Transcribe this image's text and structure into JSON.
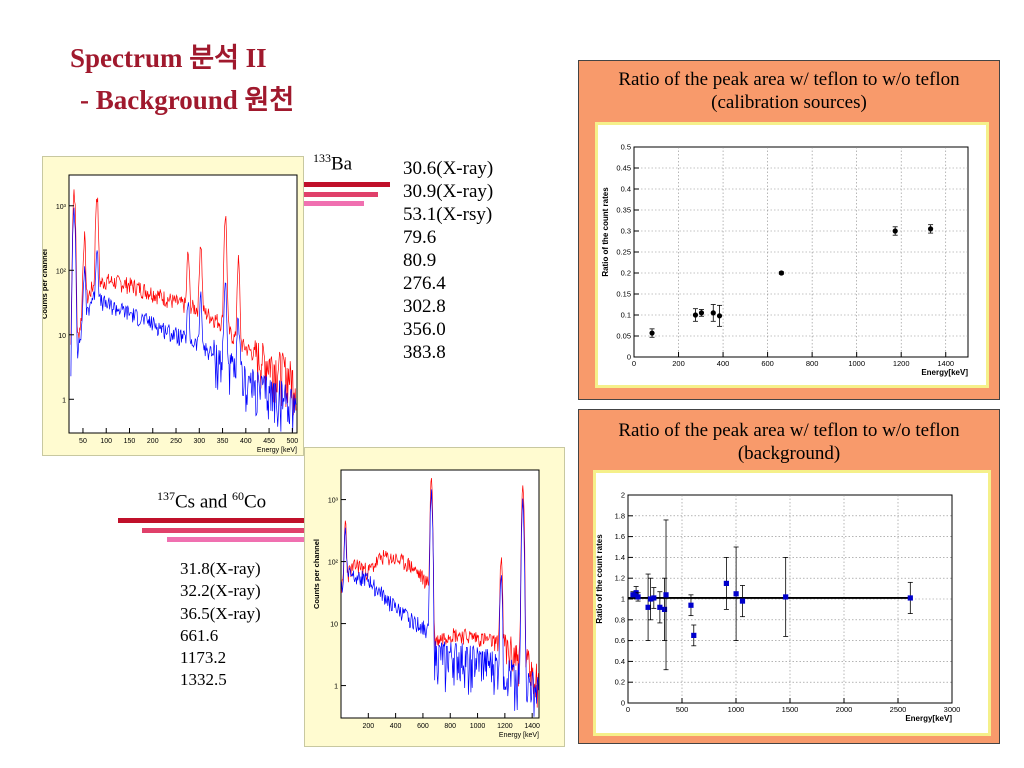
{
  "title": {
    "line1": "Spectrum 분석 II",
    "line2": "- Background 원천"
  },
  "source_labels": {
    "ba133": {
      "mass": "133",
      "element": "Ba"
    },
    "cs137_co60": {
      "mass1": "137",
      "el1": "Cs and ",
      "mass2": "60",
      "el2": "Co"
    }
  },
  "peaks_ba133": [
    "30.6(X-ray)",
    "30.9(X-ray)",
    "53.1(X-rsy)",
    "79.6",
    "80.9",
    "276.4",
    "302.8",
    "356.0",
    "383.8"
  ],
  "peaks_cs_co": [
    "31.8(X-ray)",
    "32.2(X-ray)",
    "36.5(X-ray)",
    "661.6",
    "1173.2",
    "1332.5"
  ],
  "colors": {
    "title": "#a0192d",
    "bar_dark": "#c0102a",
    "bar_mid": "#e0406a",
    "bar_light": "#f070b0",
    "panel": "#f89a6b",
    "spectrum_red": "#ff0000",
    "spectrum_blue": "#0000ff",
    "marker_black": "#000000",
    "marker_blue": "#0000cc"
  },
  "chart_data": [
    {
      "type": "line",
      "name": "ba133-spectrum",
      "xlabel": "Energy [keV]",
      "ylabel": "Counts per channel",
      "x_ticks": [
        "50",
        "100",
        "150",
        "200",
        "250",
        "300",
        "350",
        "400",
        "450",
        "500"
      ],
      "y_ticks": [
        "1",
        "10",
        "10²",
        "10³"
      ],
      "xlim": [
        20,
        510
      ],
      "ylog": true,
      "ylim": [
        0.3,
        3000
      ],
      "series": [
        {
          "color": "red",
          "base": [
            [
              25,
              4
            ],
            [
              35,
              6
            ],
            [
              50,
              25
            ],
            [
              70,
              55
            ],
            [
              100,
              70
            ],
            [
              150,
              60
            ],
            [
              200,
              45
            ],
            [
              250,
              32
            ],
            [
              300,
              25
            ],
            [
              350,
              15
            ],
            [
              380,
              8
            ],
            [
              420,
              5
            ],
            [
              480,
              3
            ],
            [
              505,
              2
            ]
          ],
          "peaks": [
            [
              31,
              1800
            ],
            [
              53,
              300
            ],
            [
              80,
              1500
            ],
            [
              276,
              150
            ],
            [
              303,
              250
            ],
            [
              356,
              700
            ],
            [
              384,
              130
            ]
          ]
        },
        {
          "color": "blue",
          "base": [
            [
              25,
              3
            ],
            [
              35,
              4
            ],
            [
              50,
              15
            ],
            [
              70,
              38
            ],
            [
              100,
              30
            ],
            [
              150,
              22
            ],
            [
              200,
              15
            ],
            [
              250,
              10
            ],
            [
              300,
              7
            ],
            [
              350,
              4
            ],
            [
              380,
              2.5
            ],
            [
              420,
              1.6
            ],
            [
              480,
              1.1
            ],
            [
              505,
              1
            ]
          ],
          "peaks": [
            [
              31,
              900
            ],
            [
              53,
              80
            ],
            [
              80,
              200
            ],
            [
              276,
              20
            ],
            [
              303,
              30
            ],
            [
              356,
              60
            ],
            [
              384,
              15
            ]
          ]
        }
      ]
    },
    {
      "type": "line",
      "name": "cs137-co60-spectrum",
      "xlabel": "Energy [keV]",
      "ylabel": "Counts per channel",
      "x_ticks": [
        "200",
        "400",
        "600",
        "800",
        "1000",
        "1200",
        "1400"
      ],
      "y_ticks": [
        "1",
        "10",
        "10²",
        "10³"
      ],
      "xlim": [
        0,
        1450
      ],
      "ylog": true,
      "ylim": [
        0.3,
        3000
      ],
      "series": [
        {
          "color": "red",
          "base": [
            [
              20,
              40
            ],
            [
              60,
              70
            ],
            [
              120,
              90
            ],
            [
              200,
              70
            ],
            [
              300,
              120
            ],
            [
              400,
              110
            ],
            [
              500,
              90
            ],
            [
              600,
              55
            ],
            [
              655,
              40
            ],
            [
              670,
              5
            ],
            [
              800,
              7
            ],
            [
              1000,
              6
            ],
            [
              1150,
              5
            ],
            [
              1300,
              3
            ],
            [
              1400,
              2
            ],
            [
              1440,
              1.5
            ]
          ],
          "peaks": [
            [
              32,
              400
            ],
            [
              662,
              2200
            ],
            [
              1173,
              120
            ],
            [
              1332,
              1800
            ]
          ]
        },
        {
          "color": "blue",
          "base": [
            [
              20,
              40
            ],
            [
              60,
              70
            ],
            [
              120,
              60
            ],
            [
              200,
              50
            ],
            [
              300,
              30
            ],
            [
              400,
              18
            ],
            [
              500,
              12
            ],
            [
              600,
              9
            ],
            [
              655,
              7
            ],
            [
              670,
              3
            ],
            [
              800,
              3
            ],
            [
              1000,
              2.5
            ],
            [
              1150,
              2
            ],
            [
              1300,
              1.3
            ],
            [
              1400,
              1
            ],
            [
              1440,
              0.8
            ]
          ],
          "peaks": [
            [
              32,
              300
            ],
            [
              662,
              1500
            ],
            [
              1173,
              70
            ],
            [
              1332,
              1000
            ]
          ]
        }
      ]
    },
    {
      "type": "scatter",
      "name": "calibration-ratio",
      "title": "Ratio of the peak area w/ teflon to w/o teflon",
      "subtitle": "(calibration sources)",
      "xlabel": "Energy[keV]",
      "ylabel": "Ratio of the count rates",
      "xlim": [
        0,
        1500
      ],
      "ylim": [
        0,
        0.5
      ],
      "x_ticks": [
        0,
        200,
        400,
        600,
        800,
        1000,
        1200,
        1400
      ],
      "y_ticks": [
        0,
        0.05,
        0.1,
        0.15,
        0.2,
        0.25,
        0.3,
        0.35,
        0.4,
        0.45,
        0.5
      ],
      "points": [
        {
          "x": 81,
          "y": 0.057,
          "err": 0.01
        },
        {
          "x": 276,
          "y": 0.1,
          "err": 0.015
        },
        {
          "x": 303,
          "y": 0.105,
          "err": 0.008
        },
        {
          "x": 356,
          "y": 0.105,
          "err": 0.02
        },
        {
          "x": 384,
          "y": 0.098,
          "err": 0.025
        },
        {
          "x": 662,
          "y": 0.2,
          "err": 0.003
        },
        {
          "x": 1173,
          "y": 0.3,
          "err": 0.01
        },
        {
          "x": 1332,
          "y": 0.305,
          "err": 0.01
        }
      ]
    },
    {
      "type": "scatter",
      "name": "background-ratio",
      "title": "Ratio of the peak area w/ teflon to w/o teflon",
      "subtitle": "(background)",
      "xlabel": "Energy[keV]",
      "ylabel": "Ratio of the count rates",
      "xlim": [
        0,
        3000
      ],
      "ylim": [
        0,
        2
      ],
      "x_ticks": [
        0,
        500,
        1000,
        1500,
        2000,
        2500,
        3000
      ],
      "y_ticks": [
        0,
        0.2,
        0.4,
        0.6,
        0.8,
        1,
        1.2,
        1.4,
        1.6,
        1.8,
        2
      ],
      "fit_line": 1.01,
      "points": [
        {
          "x": 46,
          "y": 1.04,
          "err": 0.03
        },
        {
          "x": 75,
          "y": 1.06,
          "err": 0.06
        },
        {
          "x": 93,
          "y": 1.02,
          "err": 0.04
        },
        {
          "x": 186,
          "y": 0.92,
          "err": 0.32
        },
        {
          "x": 209,
          "y": 1.0,
          "err": 0.2
        },
        {
          "x": 239,
          "y": 1.01,
          "err": 0.1
        },
        {
          "x": 295,
          "y": 0.92,
          "err": 0.15
        },
        {
          "x": 338,
          "y": 0.9,
          "err": 0.3
        },
        {
          "x": 352,
          "y": 1.04,
          "err": 0.72
        },
        {
          "x": 583,
          "y": 0.94,
          "err": 0.1
        },
        {
          "x": 609,
          "y": 0.65,
          "err": 0.1
        },
        {
          "x": 911,
          "y": 1.15,
          "err": 0.25
        },
        {
          "x": 1001,
          "y": 1.05,
          "err": 0.45
        },
        {
          "x": 1060,
          "y": 0.98,
          "err": 0.15
        },
        {
          "x": 1460,
          "y": 1.02,
          "err": 0.38
        },
        {
          "x": 2614,
          "y": 1.01,
          "err": 0.15
        }
      ]
    }
  ]
}
